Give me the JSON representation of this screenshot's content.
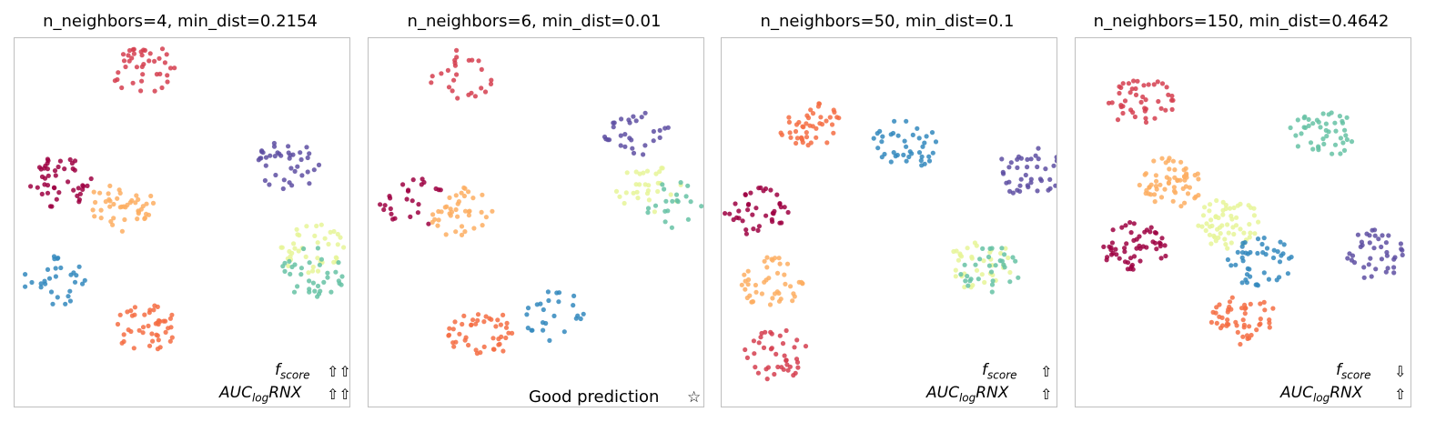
{
  "palette": [
    "#9e0142",
    "#d53e4f",
    "#f46d43",
    "#fdae61",
    "#fee08b",
    "#e6f598",
    "#abdda4",
    "#66c2a5",
    "#3288bd",
    "#5e4fa2"
  ],
  "panels": [
    {
      "title": "n_neighbors=4, min_dist=0.2154",
      "fscore_arrows": "⇧⇧",
      "auc_arrows": "⇧⇧",
      "note": ""
    },
    {
      "title": "n_neighbors=6, min_dist=0.01",
      "fscore_arrows": "",
      "auc_arrows": "",
      "note": "Good prediction",
      "star": "☆"
    },
    {
      "title": "n_neighbors=50, min_dist=0.1",
      "fscore_arrows": "⇧",
      "auc_arrows": "⇧",
      "note": ""
    },
    {
      "title": "n_neighbors=150, min_dist=0.4642",
      "fscore_arrows": "⇩",
      "auc_arrows": "⇧",
      "note": ""
    }
  ],
  "metrics": {
    "fscore_base": "f",
    "fscore_sub": "score",
    "auc_base": "AUC",
    "auc_sub": "log",
    "auc_tail": "RNX"
  },
  "chart_data": [
    {
      "type": "scatter",
      "title": "n_neighbors=4, min_dist=0.2154",
      "grid": false,
      "axes_ticks": false,
      "clusters": [
        {
          "class": 0,
          "x": 0.1,
          "y": 0.62,
          "n": 45
        },
        {
          "class": 1,
          "x": 0.37,
          "y": 0.95,
          "n": 40
        },
        {
          "class": 2,
          "x": 0.38,
          "y": 0.2,
          "n": 45
        },
        {
          "class": 3,
          "x": 0.3,
          "y": 0.55,
          "n": 45
        },
        {
          "class": 5,
          "x": 0.91,
          "y": 0.43,
          "n": 40
        },
        {
          "class": 7,
          "x": 0.92,
          "y": 0.36,
          "n": 35
        },
        {
          "class": 8,
          "x": 0.09,
          "y": 0.33,
          "n": 30
        },
        {
          "class": 9,
          "x": 0.84,
          "y": 0.67,
          "n": 40
        }
      ]
    },
    {
      "type": "scatter",
      "title": "n_neighbors=6, min_dist=0.01",
      "grid": false,
      "axes_ticks": false,
      "clusters": [
        {
          "class": 0,
          "x": 0.1,
          "y": 0.56,
          "n": 25
        },
        {
          "class": 1,
          "x": 0.26,
          "y": 0.93,
          "n": 25
        },
        {
          "class": 2,
          "x": 0.32,
          "y": 0.18,
          "n": 45
        },
        {
          "class": 3,
          "x": 0.26,
          "y": 0.53,
          "n": 40
        },
        {
          "class": 5,
          "x": 0.86,
          "y": 0.6,
          "n": 30
        },
        {
          "class": 7,
          "x": 0.93,
          "y": 0.56,
          "n": 20
        },
        {
          "class": 8,
          "x": 0.56,
          "y": 0.23,
          "n": 25
        },
        {
          "class": 9,
          "x": 0.82,
          "y": 0.77,
          "n": 30
        }
      ]
    },
    {
      "type": "scatter",
      "title": "n_neighbors=50, min_dist=0.1",
      "grid": false,
      "axes_ticks": false,
      "clusters": [
        {
          "class": 0,
          "x": 0.07,
          "y": 0.53,
          "n": 40
        },
        {
          "class": 1,
          "x": 0.13,
          "y": 0.12,
          "n": 40
        },
        {
          "class": 2,
          "x": 0.25,
          "y": 0.78,
          "n": 45
        },
        {
          "class": 3,
          "x": 0.12,
          "y": 0.33,
          "n": 45
        },
        {
          "class": 5,
          "x": 0.79,
          "y": 0.38,
          "n": 35
        },
        {
          "class": 7,
          "x": 0.82,
          "y": 0.36,
          "n": 30
        },
        {
          "class": 8,
          "x": 0.55,
          "y": 0.73,
          "n": 40
        },
        {
          "class": 9,
          "x": 0.95,
          "y": 0.65,
          "n": 40
        }
      ]
    },
    {
      "type": "scatter",
      "title": "n_neighbors=150, min_dist=0.4642",
      "grid": false,
      "axes_ticks": false,
      "clusters": [
        {
          "class": 0,
          "x": 0.15,
          "y": 0.43,
          "n": 55
        },
        {
          "class": 1,
          "x": 0.17,
          "y": 0.85,
          "n": 45
        },
        {
          "class": 2,
          "x": 0.5,
          "y": 0.22,
          "n": 50
        },
        {
          "class": 3,
          "x": 0.27,
          "y": 0.62,
          "n": 60
        },
        {
          "class": 5,
          "x": 0.45,
          "y": 0.5,
          "n": 60
        },
        {
          "class": 7,
          "x": 0.75,
          "y": 0.76,
          "n": 45
        },
        {
          "class": 8,
          "x": 0.55,
          "y": 0.39,
          "n": 45
        },
        {
          "class": 9,
          "x": 0.92,
          "y": 0.41,
          "n": 40
        }
      ]
    }
  ]
}
